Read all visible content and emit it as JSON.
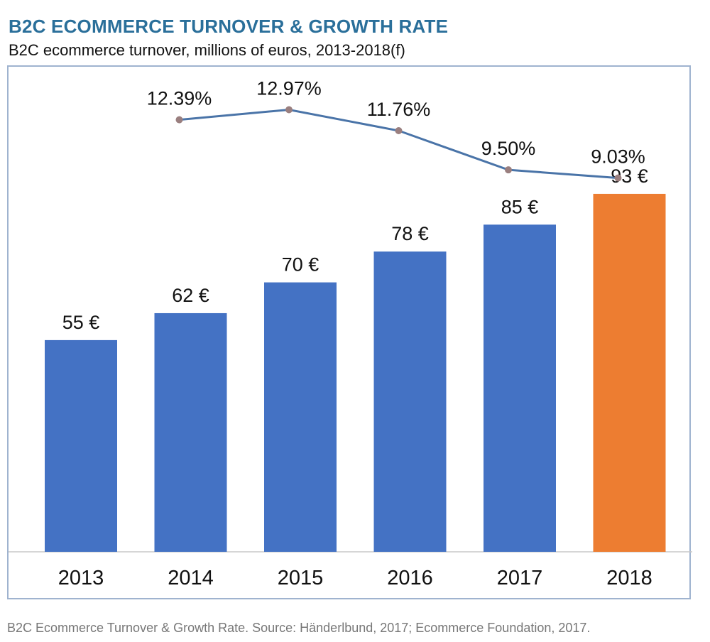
{
  "title": "B2C ECOMMERCE TURNOVER & GROWTH RATE",
  "subtitle": "B2C ecommerce turnover, millions of euros, 2013-2018(f)",
  "source": "B2C Ecommerce Turnover & Growth Rate. Source: Händerlbund, 2017; Ecommerce Foundation, 2017.",
  "chart_data": {
    "type": "bar",
    "categories": [
      "2013",
      "2014",
      "2015",
      "2016",
      "2017",
      "2018"
    ],
    "values": [
      55,
      62,
      70,
      78,
      85,
      93
    ],
    "value_labels": [
      "55 €",
      "62 €",
      "70 €",
      "78 €",
      "85 €",
      "93 €"
    ],
    "bar_colors": [
      "#4472c4",
      "#4472c4",
      "#4472c4",
      "#4472c4",
      "#4472c4",
      "#ed7d31"
    ],
    "growth_rate": {
      "type": "line",
      "categories": [
        "2014",
        "2015",
        "2016",
        "2017",
        "2018"
      ],
      "values": [
        12.39,
        12.97,
        11.76,
        9.5,
        9.03
      ],
      "labels": [
        "12.39%",
        "12.97%",
        "11.76%",
        "9.50%",
        "9.03%"
      ],
      "line_color": "#4a74a8",
      "marker_color": "#9a7f7f"
    },
    "ylim": [
      0,
      110
    ],
    "grid": false,
    "legend": "none"
  }
}
